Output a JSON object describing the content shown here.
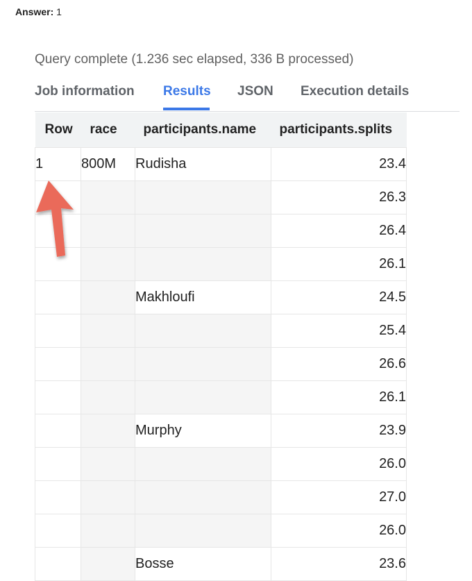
{
  "answer": {
    "label": "Answer:",
    "value": "1"
  },
  "status": "Query complete (1.236 sec elapsed, 336 B processed)",
  "tabs": [
    {
      "label": "Job information",
      "active": false
    },
    {
      "label": "Results",
      "active": true
    },
    {
      "label": "JSON",
      "active": false
    },
    {
      "label": "Execution details",
      "active": false
    }
  ],
  "columns": [
    "Row",
    "race",
    "participants.name",
    "participants.splits"
  ],
  "rows": [
    {
      "row": "1",
      "race": "800M",
      "name": "Rudisha",
      "split": "23.4"
    },
    {
      "row": "",
      "race": "",
      "name": "",
      "split": "26.3"
    },
    {
      "row": "",
      "race": "",
      "name": "",
      "split": "26.4"
    },
    {
      "row": "",
      "race": "",
      "name": "",
      "split": "26.1"
    },
    {
      "row": "",
      "race": "",
      "name": "Makhloufi",
      "split": "24.5"
    },
    {
      "row": "",
      "race": "",
      "name": "",
      "split": "25.4"
    },
    {
      "row": "",
      "race": "",
      "name": "",
      "split": "26.6"
    },
    {
      "row": "",
      "race": "",
      "name": "",
      "split": "26.1"
    },
    {
      "row": "",
      "race": "",
      "name": "Murphy",
      "split": "23.9"
    },
    {
      "row": "",
      "race": "",
      "name": "",
      "split": "26.0"
    },
    {
      "row": "",
      "race": "",
      "name": "",
      "split": "27.0"
    },
    {
      "row": "",
      "race": "",
      "name": "",
      "split": "26.0"
    },
    {
      "row": "",
      "race": "",
      "name": "Bosse",
      "split": "23.6"
    }
  ],
  "colors": {
    "active_tab": "#3b78e7",
    "arrow": "#ea6a5a",
    "empty_cell": "#f5f5f5",
    "header_bg": "#f1f3f4"
  },
  "annotation": {
    "icon": "up-arrow-icon"
  }
}
